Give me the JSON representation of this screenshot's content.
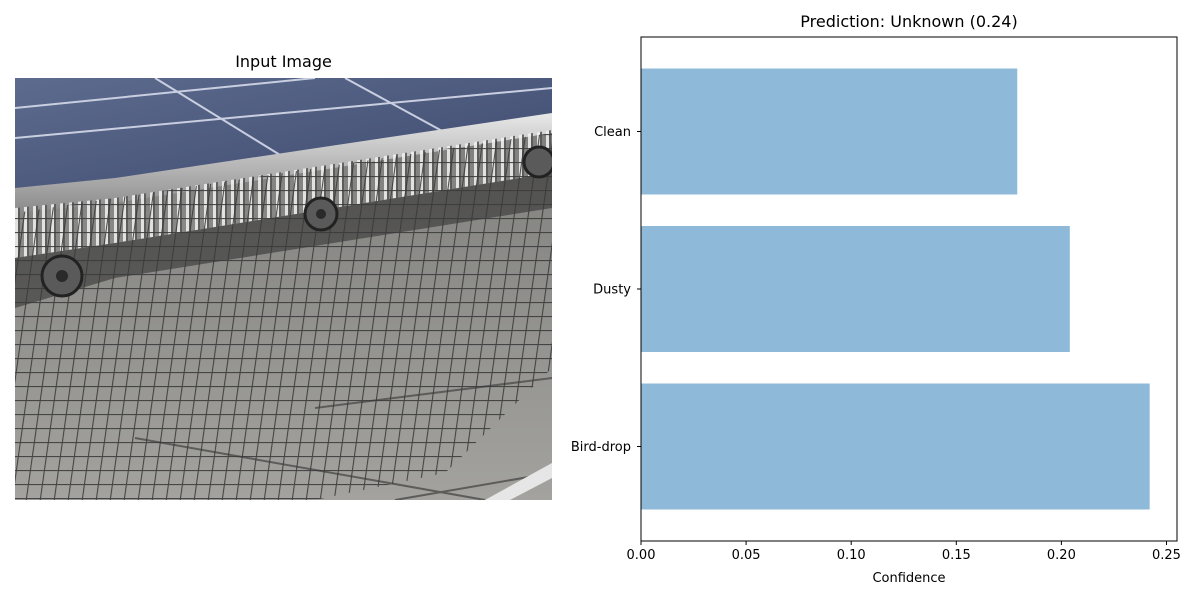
{
  "image_panel": {
    "title": "Input Image",
    "image_subject": "wire-mesh-guard-under-solar-panel"
  },
  "chart_data": {
    "type": "bar",
    "orientation": "horizontal",
    "title": "Prediction: Unknown (0.24)",
    "xlabel": "Confidence",
    "ylabel": "",
    "categories": [
      "Bird-drop",
      "Dusty",
      "Clean"
    ],
    "values": [
      0.242,
      0.204,
      0.179
    ],
    "xlim": [
      0,
      0.255
    ],
    "xticks": [
      0.0,
      0.05,
      0.1,
      0.15,
      0.2,
      0.25
    ],
    "xtick_labels": [
      "0.00",
      "0.05",
      "0.10",
      "0.15",
      "0.20",
      "0.25"
    ],
    "bar_color": "#8fb9d9",
    "grid": false
  }
}
